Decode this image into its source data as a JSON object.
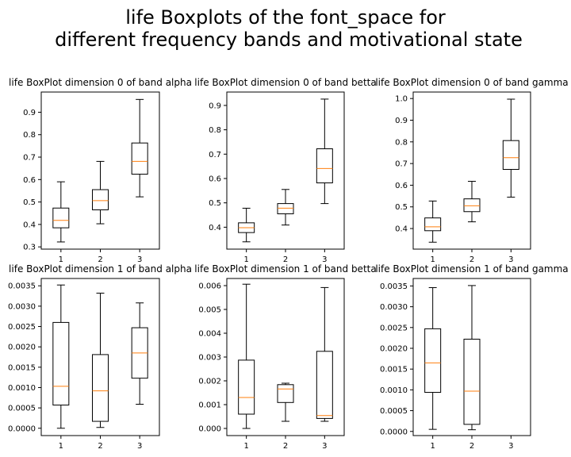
{
  "figure": {
    "title_lines": [
      "life Boxplots of the font_space for",
      "different frequency bands and motivational state"
    ]
  },
  "chart_data": [
    {
      "type": "box",
      "title": "life BoxPlot dimension 0 of band alpha",
      "categories": [
        "1",
        "2",
        "3"
      ],
      "yticks": [
        "0.3",
        "0.4",
        "0.5",
        "0.6",
        "0.7",
        "0.8",
        "0.9"
      ],
      "ytick_values": [
        0.3,
        0.4,
        0.5,
        0.6,
        0.7,
        0.8,
        0.9
      ],
      "ylim": [
        0.29,
        0.99
      ],
      "boxes": [
        {
          "min": 0.322,
          "q1": 0.385,
          "median": 0.418,
          "q3": 0.473,
          "max": 0.59
        },
        {
          "min": 0.403,
          "q1": 0.465,
          "median": 0.506,
          "q3": 0.555,
          "max": 0.681
        },
        {
          "min": 0.523,
          "q1": 0.624,
          "median": 0.681,
          "q3": 0.763,
          "max": 0.957
        }
      ],
      "box_color": "#000000",
      "median_color": "#ff7f0e"
    },
    {
      "type": "box",
      "title": "life BoxPlot dimension 0 of band betta",
      "categories": [
        "1",
        "2",
        "3"
      ],
      "yticks": [
        "0.4",
        "0.5",
        "0.6",
        "0.7",
        "0.8",
        "0.9"
      ],
      "ytick_values": [
        0.4,
        0.5,
        0.6,
        0.7,
        0.8,
        0.9
      ],
      "ylim": [
        0.31,
        0.955
      ],
      "boxes": [
        {
          "min": 0.34,
          "q1": 0.378,
          "median": 0.398,
          "q3": 0.418,
          "max": 0.478
        },
        {
          "min": 0.409,
          "q1": 0.455,
          "median": 0.478,
          "q3": 0.497,
          "max": 0.555
        },
        {
          "min": 0.497,
          "q1": 0.582,
          "median": 0.641,
          "q3": 0.722,
          "max": 0.926
        }
      ],
      "box_color": "#000000",
      "median_color": "#ff7f0e"
    },
    {
      "type": "box",
      "title": "life BoxPlot dimension 0 of band gamma",
      "categories": [
        "1",
        "2",
        "3"
      ],
      "yticks": [
        "0.4",
        "0.5",
        "0.6",
        "0.7",
        "0.8",
        "0.9",
        "1.0"
      ],
      "ytick_values": [
        0.4,
        0.5,
        0.6,
        0.7,
        0.8,
        0.9,
        1.0
      ],
      "ylim": [
        0.305,
        1.03
      ],
      "boxes": [
        {
          "min": 0.337,
          "q1": 0.39,
          "median": 0.408,
          "q3": 0.449,
          "max": 0.527
        },
        {
          "min": 0.431,
          "q1": 0.478,
          "median": 0.505,
          "q3": 0.537,
          "max": 0.618
        },
        {
          "min": 0.545,
          "q1": 0.673,
          "median": 0.727,
          "q3": 0.806,
          "max": 0.997
        }
      ],
      "box_color": "#000000",
      "median_color": "#ff7f0e"
    },
    {
      "type": "box",
      "title": "life BoxPlot dimension 1 of band alpha",
      "categories": [
        "1",
        "2",
        "3"
      ],
      "yticks": [
        "0.0000",
        "0.0005",
        "0.0010",
        "0.0015",
        "0.0020",
        "0.0025",
        "0.0030",
        "0.0035"
      ],
      "ytick_values": [
        0.0,
        0.0005,
        0.001,
        0.0015,
        0.002,
        0.0025,
        0.003,
        0.0035
      ],
      "ylim": [
        -0.00018,
        0.00368
      ],
      "boxes": [
        {
          "min": 0.0,
          "q1": 0.00057,
          "median": 0.00103,
          "q3": 0.0026,
          "max": 0.00352
        },
        {
          "min": 2e-05,
          "q1": 0.00017,
          "median": 0.00092,
          "q3": 0.00181,
          "max": 0.00332
        },
        {
          "min": 0.00059,
          "q1": 0.00123,
          "median": 0.00185,
          "q3": 0.00247,
          "max": 0.00308
        }
      ],
      "box_color": "#000000",
      "median_color": "#ff7f0e"
    },
    {
      "type": "box",
      "title": "life BoxPlot dimension 1 of band betta",
      "categories": [
        "1",
        "2",
        "3"
      ],
      "yticks": [
        "0.000",
        "0.001",
        "0.002",
        "0.003",
        "0.004",
        "0.005",
        "0.006"
      ],
      "ytick_values": [
        0.0,
        0.001,
        0.002,
        0.003,
        0.004,
        0.005,
        0.006
      ],
      "ylim": [
        -0.0003,
        0.0063
      ],
      "boxes": [
        {
          "min": 0.0,
          "q1": 0.0006,
          "median": 0.0013,
          "q3": 0.00287,
          "max": 0.00606
        },
        {
          "min": 0.0003,
          "q1": 0.00109,
          "median": 0.00166,
          "q3": 0.00184,
          "max": 0.0019
        },
        {
          "min": 0.0003,
          "q1": 0.00042,
          "median": 0.00054,
          "q3": 0.00324,
          "max": 0.00592
        }
      ],
      "box_color": "#000000",
      "median_color": "#ff7f0e"
    },
    {
      "type": "box",
      "title": "life BoxPlot dimension 1 of band gamma",
      "categories": [
        "1",
        "2",
        "3"
      ],
      "yticks": [
        "0.0000",
        "0.0005",
        "0.0010",
        "0.0015",
        "0.0020",
        "0.0025",
        "0.0030",
        "0.0035"
      ],
      "ytick_values": [
        0.0,
        0.0005,
        0.001,
        0.0015,
        0.002,
        0.0025,
        0.003,
        0.0035
      ],
      "ylim": [
        -0.0001,
        0.00368
      ],
      "boxes": [
        {
          "min": 5e-05,
          "q1": 0.00094,
          "median": 0.00165,
          "q3": 0.00247,
          "max": 0.00346
        },
        {
          "min": 4e-05,
          "q1": 0.00017,
          "median": 0.00097,
          "q3": 0.00222,
          "max": 0.00351
        },
        null
      ],
      "box_color": "#000000",
      "median_color": "#ff7f0e"
    }
  ]
}
